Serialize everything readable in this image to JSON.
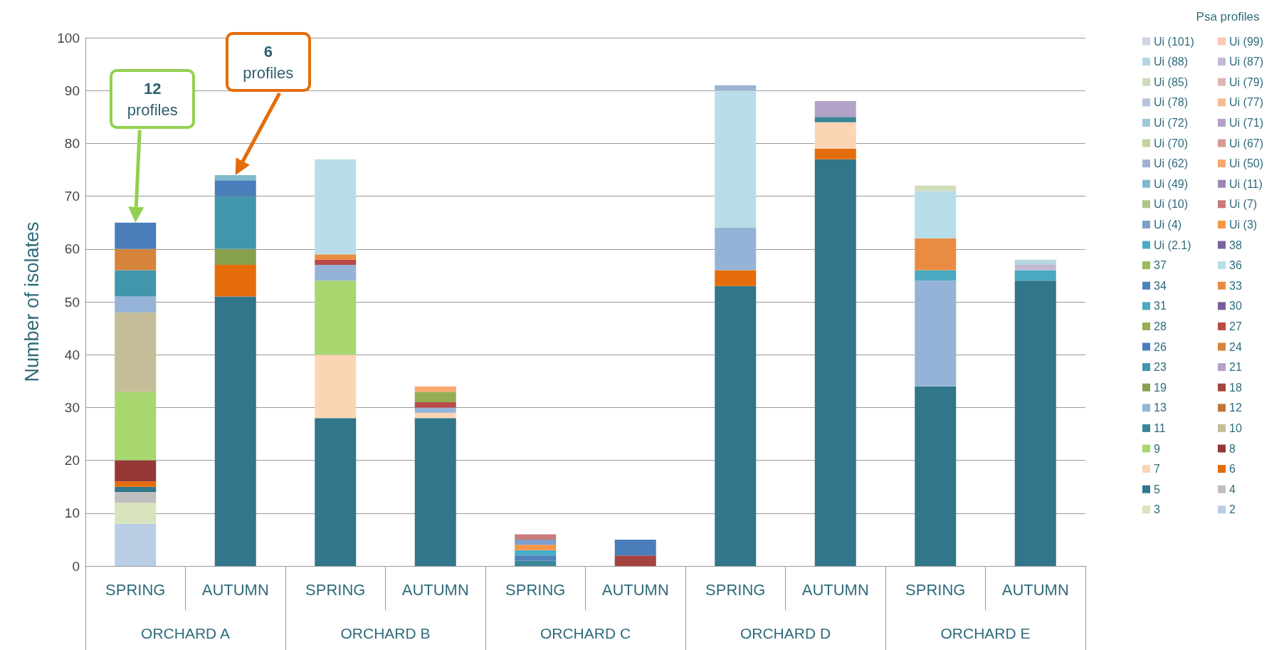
{
  "chart_data": {
    "type": "bar",
    "stacked": true,
    "ylabel": "Number of isolates",
    "legend_title": "Psa profiles",
    "legend": "right",
    "grid": "y",
    "ylim": [
      0,
      100
    ],
    "yticks": [
      0,
      10,
      20,
      30,
      40,
      50,
      60,
      70,
      80,
      90,
      100
    ],
    "categories": [
      "SPRING",
      "AUTUMN",
      "SPRING",
      "AUTUMN",
      "SPRING",
      "AUTUMN",
      "SPRING",
      "AUTUMN",
      "SPRING",
      "AUTUMN"
    ],
    "annotations": [
      "12 profiles",
      "6 profiles",
      "ORCHARD A",
      "ORCHARD B",
      "ORCHARD C",
      "ORCHARD D",
      "ORCHARD E"
    ],
    "series": [
      {
        "name": "2",
        "color": "#b9cde5",
        "values": [
          8,
          null,
          null,
          null,
          null,
          null,
          null,
          null,
          null,
          null
        ]
      },
      {
        "name": "3",
        "color": "#d7e4bd",
        "values": [
          4,
          null,
          null,
          null,
          null,
          null,
          null,
          null,
          null,
          null
        ]
      },
      {
        "name": "4",
        "color": "#bfbfbf",
        "values": [
          2,
          null,
          null,
          null,
          null,
          null,
          null,
          null,
          null,
          null
        ]
      },
      {
        "name": "5",
        "color": "#31768a",
        "values": [
          1,
          51,
          28,
          28,
          null,
          null,
          53,
          77,
          34,
          54
        ]
      },
      {
        "name": "6",
        "color": "#e46c0a",
        "values": [
          1,
          6,
          null,
          null,
          null,
          null,
          3,
          2,
          null,
          null
        ]
      },
      {
        "name": "7",
        "color": "#fcd5b5",
        "values": [
          null,
          null,
          12,
          1,
          null,
          null,
          null,
          5,
          null,
          null
        ]
      },
      {
        "name": "8",
        "color": "#953735",
        "values": [
          4,
          null,
          null,
          null,
          null,
          null,
          null,
          null,
          null,
          null
        ]
      },
      {
        "name": "9",
        "color": "#a8d770",
        "values": [
          13,
          null,
          14,
          null,
          null,
          null,
          null,
          null,
          null,
          null
        ]
      },
      {
        "name": "10",
        "color": "#c4bd97",
        "values": [
          15,
          null,
          null,
          null,
          null,
          null,
          null,
          null,
          null,
          null
        ]
      },
      {
        "name": "11",
        "color": "#3a8699",
        "values": [
          null,
          null,
          null,
          null,
          1,
          null,
          null,
          1,
          null,
          null
        ]
      },
      {
        "name": "12",
        "color": "#c0783a",
        "values": [
          null,
          null,
          null,
          null,
          null,
          null,
          null,
          null,
          null,
          null
        ]
      },
      {
        "name": "13",
        "color": "#95b3d7",
        "values": [
          3,
          null,
          3,
          1,
          null,
          null,
          8,
          null,
          20,
          null
        ]
      },
      {
        "name": "18",
        "color": "#a5433f",
        "values": [
          null,
          null,
          null,
          null,
          null,
          2,
          null,
          null,
          null,
          null
        ]
      },
      {
        "name": "19",
        "color": "#86a04b",
        "values": [
          null,
          3,
          null,
          null,
          null,
          null,
          null,
          null,
          null,
          null
        ]
      },
      {
        "name": "21",
        "color": "#b3a2c7",
        "values": [
          null,
          null,
          null,
          null,
          null,
          null,
          null,
          3,
          null,
          null
        ]
      },
      {
        "name": "23",
        "color": "#4196ac",
        "values": [
          5,
          10,
          null,
          null,
          null,
          null,
          null,
          null,
          null,
          null
        ]
      },
      {
        "name": "24",
        "color": "#d6843c",
        "values": [
          4,
          null,
          null,
          null,
          null,
          null,
          null,
          null,
          null,
          null
        ]
      },
      {
        "name": "26",
        "color": "#4a7ebb",
        "values": [
          5,
          3,
          null,
          null,
          null,
          3,
          null,
          null,
          null,
          null
        ]
      },
      {
        "name": "27",
        "color": "#b94a48",
        "values": [
          null,
          null,
          1,
          1,
          null,
          null,
          null,
          null,
          null,
          null
        ]
      },
      {
        "name": "28",
        "color": "#93ae53",
        "values": [
          null,
          null,
          null,
          2,
          null,
          null,
          null,
          null,
          null,
          null
        ]
      },
      {
        "name": "30",
        "color": "#7b5c99",
        "values": [
          null,
          null,
          null,
          null,
          null,
          null,
          null,
          null,
          null,
          null
        ]
      },
      {
        "name": "31",
        "color": "#4aa8c1",
        "values": [
          null,
          null,
          null,
          null,
          null,
          null,
          null,
          null,
          2,
          2
        ]
      },
      {
        "name": "33",
        "color": "#e98c41",
        "values": [
          null,
          null,
          1,
          null,
          null,
          null,
          null,
          null,
          6,
          null
        ]
      },
      {
        "name": "34",
        "color": "#4f81bd",
        "values": [
          null,
          null,
          null,
          null,
          1,
          null,
          null,
          null,
          null,
          null
        ]
      },
      {
        "name": "36",
        "color": "#b7dee8",
        "values": [
          null,
          null,
          18,
          null,
          null,
          null,
          26,
          null,
          9,
          null
        ]
      },
      {
        "name": "37",
        "color": "#9bbb59",
        "values": [
          null,
          null,
          null,
          null,
          null,
          null,
          null,
          null,
          null,
          null
        ]
      },
      {
        "name": "38",
        "color": "#7f62a0",
        "values": [
          null,
          null,
          null,
          null,
          null,
          null,
          null,
          null,
          null,
          null
        ]
      },
      {
        "name": "Ui (2.1)",
        "color": "#4bacc6",
        "values": [
          null,
          null,
          null,
          null,
          1,
          null,
          null,
          null,
          null,
          null
        ]
      },
      {
        "name": "Ui (3)",
        "color": "#f79646",
        "values": [
          null,
          null,
          null,
          null,
          1,
          null,
          null,
          null,
          null,
          null
        ]
      },
      {
        "name": "Ui (4)",
        "color": "#7f9dcd",
        "values": [
          null,
          null,
          null,
          null,
          1,
          null,
          null,
          null,
          null,
          null
        ]
      },
      {
        "name": "Ui (7)",
        "color": "#c97b7b",
        "values": [
          null,
          null,
          null,
          null,
          1,
          null,
          null,
          null,
          null,
          null
        ]
      },
      {
        "name": "Ui (10)",
        "color": "#adc687",
        "values": [
          null,
          null,
          null,
          null,
          null,
          null,
          null,
          null,
          null,
          null
        ]
      },
      {
        "name": "Ui (11)",
        "color": "#9c86b4",
        "values": [
          null,
          null,
          null,
          null,
          null,
          null,
          null,
          null,
          null,
          null
        ]
      },
      {
        "name": "Ui (49)",
        "color": "#7fbacc",
        "values": [
          null,
          1,
          null,
          null,
          null,
          null,
          null,
          null,
          null,
          null
        ]
      },
      {
        "name": "Ui (50)",
        "color": "#f9a872",
        "values": [
          null,
          null,
          null,
          1,
          null,
          null,
          null,
          null,
          null,
          null
        ]
      },
      {
        "name": "Ui (62)",
        "color": "#9eb2d5",
        "values": [
          null,
          null,
          null,
          null,
          null,
          null,
          1,
          null,
          null,
          null
        ]
      },
      {
        "name": "Ui (67)",
        "color": "#d59a98",
        "values": [
          null,
          null,
          null,
          null,
          null,
          null,
          null,
          null,
          null,
          null
        ]
      },
      {
        "name": "Ui (70)",
        "color": "#bfd4a1",
        "values": [
          null,
          null,
          null,
          null,
          null,
          null,
          null,
          null,
          null,
          null
        ]
      },
      {
        "name": "Ui (71)",
        "color": "#b1a2c6",
        "values": [
          null,
          null,
          null,
          null,
          null,
          null,
          null,
          null,
          null,
          null
        ]
      },
      {
        "name": "Ui (72)",
        "color": "#9ccad8",
        "values": [
          null,
          null,
          null,
          null,
          null,
          null,
          null,
          null,
          null,
          null
        ]
      },
      {
        "name": "Ui (77)",
        "color": "#fab994",
        "values": [
          null,
          null,
          null,
          null,
          null,
          null,
          null,
          null,
          null,
          null
        ]
      },
      {
        "name": "Ui (78)",
        "color": "#b5c3e0",
        "values": [
          null,
          null,
          null,
          null,
          null,
          null,
          null,
          null,
          null,
          null
        ]
      },
      {
        "name": "Ui (79)",
        "color": "#deb5b4",
        "values": [
          null,
          null,
          null,
          null,
          null,
          null,
          null,
          null,
          null,
          null
        ]
      },
      {
        "name": "Ui (85)",
        "color": "#cfdcb8",
        "values": [
          null,
          null,
          null,
          null,
          null,
          null,
          null,
          null,
          1,
          null
        ]
      },
      {
        "name": "Ui (87)",
        "color": "#c5b8d3",
        "values": [
          null,
          null,
          null,
          null,
          null,
          null,
          null,
          null,
          null,
          1
        ]
      },
      {
        "name": "Ui (88)",
        "color": "#b5d6e0",
        "values": [
          null,
          null,
          null,
          null,
          null,
          null,
          null,
          null,
          null,
          1
        ]
      },
      {
        "name": "Ui (99)",
        "color": "#fac9b2",
        "values": [
          null,
          null,
          null,
          null,
          null,
          null,
          null,
          null,
          null,
          null
        ]
      },
      {
        "name": "Ui (101)",
        "color": "#cdd5e6",
        "values": [
          null,
          null,
          null,
          null,
          null,
          null,
          null,
          null,
          null,
          null
        ]
      }
    ]
  }
}
